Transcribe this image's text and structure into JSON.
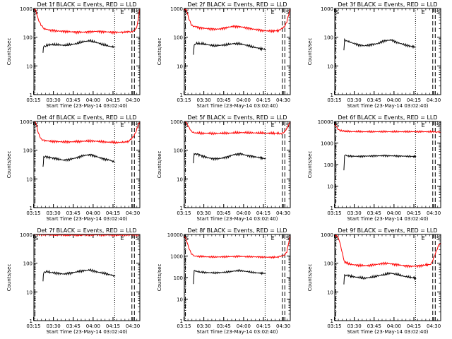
{
  "colors": {
    "events": "#000000",
    "lld": "#ff0000",
    "axis": "#000000"
  },
  "shared": {
    "ylabel": "Counts/sec",
    "xlabel": "Start Time (23-May-14 03:02:40)",
    "xticks": [
      "03:15",
      "03:30",
      "03:45",
      "04:00",
      "04:15",
      "04:30"
    ],
    "x_range_min": [
      12.6,
      92.6
    ],
    "tick_positions_min": [
      12.33,
      27.33,
      42.33,
      57.33,
      72.33,
      87.33
    ],
    "markers": {
      "S_label": "S",
      "E_label": "E",
      "S_min": 0.0,
      "E_min": 78.0,
      "right_label": "S"
    },
    "vlines": {
      "dashdot_min": 13.4,
      "dotted_min": 73.6,
      "dashed1_min": 86.6,
      "dashed2_min": 88.5
    }
  },
  "chart_data": [
    {
      "type": "line",
      "title": "Det 1f BLACK = Events, RED = LLD",
      "ylim": [
        1,
        1000
      ],
      "yticks": [
        "1",
        "10",
        "100",
        "1000"
      ],
      "series": [
        {
          "name": "LLD",
          "color": "#ff0000",
          "x": [
            12.6,
            14,
            16,
            18,
            20,
            25,
            30,
            35,
            40,
            45,
            50,
            55,
            60,
            65,
            70,
            75,
            80,
            84,
            86,
            88,
            90,
            91,
            92.6
          ],
          "values": [
            1000,
            900,
            400,
            250,
            200,
            175,
            165,
            160,
            155,
            150,
            150,
            155,
            160,
            155,
            150,
            148,
            150,
            155,
            160,
            170,
            200,
            320,
            1000
          ]
        },
        {
          "name": "Events",
          "color": "#000000",
          "x": [
            19.5,
            20,
            22,
            25,
            30,
            35,
            40,
            45,
            50,
            55,
            60,
            65,
            70,
            74
          ],
          "values": [
            30,
            50,
            52,
            55,
            55,
            52,
            55,
            60,
            70,
            75,
            65,
            55,
            48,
            45
          ]
        }
      ]
    },
    {
      "type": "line",
      "title": "Det 2f BLACK = Events, RED = LLD",
      "ylim": [
        1,
        1000
      ],
      "yticks": [
        "1",
        "10",
        "100",
        "1000"
      ],
      "series": [
        {
          "name": "LLD",
          "color": "#ff0000",
          "x": [
            12.6,
            14,
            16,
            18,
            20,
            25,
            30,
            35,
            40,
            45,
            50,
            55,
            60,
            65,
            70,
            75,
            80,
            84,
            86,
            88,
            90,
            92.6
          ],
          "values": [
            1000,
            900,
            450,
            280,
            240,
            210,
            200,
            190,
            195,
            220,
            240,
            230,
            210,
            190,
            175,
            165,
            165,
            170,
            185,
            220,
            350,
            1000
          ]
        },
        {
          "name": "Events",
          "color": "#000000",
          "x": [
            19.5,
            20,
            22,
            25,
            30,
            35,
            40,
            45,
            50,
            55,
            60,
            65,
            70,
            74
          ],
          "values": [
            25,
            50,
            60,
            60,
            55,
            50,
            52,
            55,
            60,
            58,
            52,
            45,
            40,
            38
          ]
        }
      ]
    },
    {
      "type": "line",
      "title": "Det 3f BLACK = Events, RED = LLD",
      "ylim": [
        1,
        1000
      ],
      "yticks": [
        "1",
        "10",
        "100",
        "1000"
      ],
      "series": [
        {
          "name": "Events",
          "color": "#000000",
          "x": [
            19.5,
            20,
            22,
            25,
            30,
            35,
            40,
            45,
            50,
            55,
            60,
            65,
            70,
            74
          ],
          "values": [
            35,
            80,
            75,
            65,
            55,
            50,
            55,
            60,
            75,
            80,
            65,
            55,
            48,
            45
          ]
        }
      ]
    },
    {
      "type": "line",
      "title": "Det 4f BLACK = Events, RED = LLD",
      "ylim": [
        1,
        1000
      ],
      "yticks": [
        "1",
        "10",
        "100",
        "1000"
      ],
      "series": [
        {
          "name": "LLD",
          "color": "#ff0000",
          "x": [
            12.6,
            14,
            16,
            18,
            20,
            25,
            30,
            35,
            40,
            45,
            50,
            55,
            60,
            65,
            70,
            75,
            80,
            84,
            86,
            88,
            90,
            92.6
          ],
          "values": [
            1000,
            900,
            400,
            260,
            220,
            205,
            200,
            195,
            195,
            200,
            205,
            210,
            205,
            195,
            190,
            185,
            190,
            200,
            230,
            300,
            500,
            1000
          ]
        },
        {
          "name": "Events",
          "color": "#000000",
          "x": [
            19.5,
            20,
            22,
            25,
            30,
            35,
            40,
            45,
            50,
            55,
            60,
            65,
            70,
            74
          ],
          "values": [
            25,
            55,
            58,
            55,
            50,
            45,
            48,
            55,
            65,
            70,
            60,
            50,
            45,
            38
          ]
        }
      ]
    },
    {
      "type": "line",
      "title": "Det 5f BLACK = Events, RED = LLD",
      "ylim": [
        1,
        1000
      ],
      "yticks": [
        "1",
        "10",
        "100",
        "1000"
      ],
      "series": [
        {
          "name": "LLD",
          "color": "#ff0000",
          "x": [
            12.6,
            14,
            16,
            18,
            20,
            25,
            30,
            35,
            40,
            45,
            50,
            55,
            60,
            65,
            70,
            75,
            80,
            84,
            86,
            88,
            90,
            92.6
          ],
          "values": [
            1000,
            950,
            600,
            430,
            400,
            390,
            385,
            380,
            385,
            390,
            400,
            410,
            405,
            400,
            395,
            390,
            385,
            390,
            400,
            430,
            550,
            1000
          ]
        },
        {
          "name": "Events",
          "color": "#000000",
          "x": [
            19.5,
            20,
            22,
            25,
            30,
            35,
            40,
            45,
            50,
            55,
            60,
            65,
            70,
            74
          ],
          "values": [
            35,
            80,
            75,
            65,
            55,
            50,
            52,
            58,
            70,
            75,
            65,
            60,
            55,
            50
          ]
        }
      ]
    },
    {
      "type": "line",
      "title": "Det 6f BLACK = Events, RED = LLD",
      "ylim": [
        1,
        10000
      ],
      "yticks": [
        "1",
        "10",
        "100",
        "1000",
        "10000"
      ],
      "series": [
        {
          "name": "LLD",
          "color": "#ff0000",
          "x": [
            12.6,
            13.5,
            15,
            17,
            20,
            25,
            30,
            35,
            40,
            50,
            60,
            70,
            80,
            85,
            88,
            90,
            92.6
          ],
          "values": [
            8000,
            6000,
            4500,
            3800,
            3500,
            3400,
            3400,
            3350,
            3350,
            3350,
            3350,
            3350,
            3350,
            3350,
            3350,
            3300,
            3300
          ]
        },
        {
          "name": "Events",
          "color": "#000000",
          "x": [
            19.5,
            20,
            22,
            25,
            30,
            35,
            40,
            45,
            50,
            55,
            60,
            65,
            70,
            74
          ],
          "values": [
            50,
            260,
            250,
            245,
            240,
            245,
            250,
            255,
            260,
            255,
            250,
            245,
            240,
            235
          ]
        }
      ]
    },
    {
      "type": "line",
      "title": "Det 7f BLACK = Events, RED = LLD",
      "ylim": [
        1,
        1000
      ],
      "yticks": [
        "1",
        "10",
        "100",
        "1000"
      ],
      "series": [
        {
          "name": "LLD",
          "color": "#ff0000",
          "x": [
            12.6,
            20,
            30,
            40,
            50,
            60,
            70,
            80,
            86,
            90,
            92.6
          ],
          "values": [
            1000,
            980,
            960,
            950,
            960,
            970,
            960,
            950,
            960,
            980,
            1000
          ]
        },
        {
          "name": "Events",
          "color": "#000000",
          "x": [
            19.5,
            20,
            22,
            25,
            30,
            35,
            40,
            45,
            50,
            55,
            60,
            65,
            70,
            74
          ],
          "values": [
            25,
            50,
            52,
            48,
            45,
            42,
            45,
            50,
            55,
            58,
            50,
            45,
            40,
            35
          ]
        }
      ]
    },
    {
      "type": "line",
      "title": "Det 8f BLACK = Events, RED = LLD",
      "ylim": [
        1,
        10000
      ],
      "yticks": [
        "1",
        "10",
        "100",
        "1000",
        "10000"
      ],
      "series": [
        {
          "name": "LLD",
          "color": "#ff0000",
          "x": [
            12.6,
            14,
            16,
            18,
            20,
            25,
            30,
            35,
            40,
            45,
            50,
            55,
            60,
            65,
            70,
            75,
            80,
            84,
            86,
            88,
            90,
            92.6
          ],
          "values": [
            9000,
            6000,
            2500,
            1300,
            1000,
            950,
            920,
            900,
            910,
            930,
            950,
            960,
            940,
            920,
            900,
            880,
            880,
            900,
            950,
            1100,
            1600,
            9000
          ]
        },
        {
          "name": "Events",
          "color": "#000000",
          "x": [
            19.5,
            20,
            22,
            25,
            30,
            35,
            40,
            45,
            50,
            55,
            60,
            65,
            70,
            74
          ],
          "values": [
            50,
            200,
            190,
            180,
            170,
            165,
            170,
            180,
            200,
            210,
            190,
            170,
            160,
            155
          ]
        }
      ]
    },
    {
      "type": "line",
      "title": "Det 9f BLACK = Events, RED = LLD",
      "ylim": [
        1,
        1000
      ],
      "yticks": [
        "1",
        "10",
        "100",
        "1000"
      ],
      "series": [
        {
          "name": "LLD",
          "color": "#ff0000",
          "x": [
            12.6,
            14,
            16,
            18,
            20,
            25,
            30,
            35,
            40,
            45,
            50,
            55,
            60,
            65,
            70,
            75,
            80,
            84,
            86,
            88,
            90,
            91,
            92.6
          ],
          "values": [
            1000,
            950,
            600,
            250,
            110,
            90,
            85,
            82,
            85,
            92,
            100,
            95,
            88,
            82,
            78,
            80,
            85,
            90,
            110,
            180,
            300,
            400,
            500
          ]
        },
        {
          "name": "Events",
          "color": "#000000",
          "x": [
            19.5,
            20,
            22,
            25,
            30,
            35,
            40,
            45,
            50,
            55,
            60,
            65,
            70,
            74
          ],
          "values": [
            20,
            40,
            38,
            35,
            32,
            30,
            32,
            36,
            40,
            45,
            40,
            35,
            32,
            30
          ]
        }
      ]
    }
  ]
}
